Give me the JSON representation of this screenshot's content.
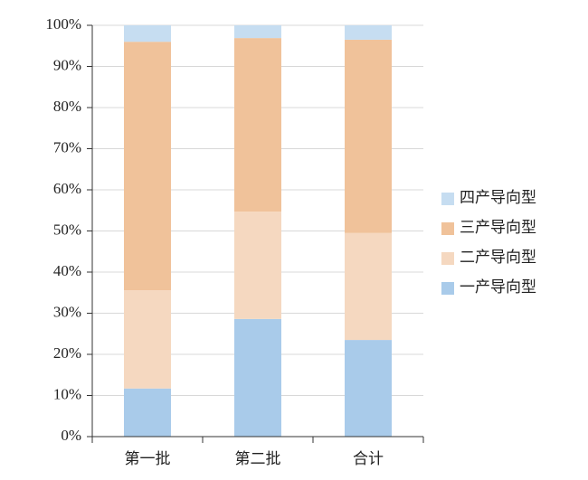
{
  "chart_data": {
    "type": "stacked_bar",
    "categories": [
      "第一批",
      "第二批",
      "合计"
    ],
    "series": [
      {
        "name": "一产导向型",
        "color": "#a9cbea",
        "values": [
          11.7,
          28.6,
          23.5
        ]
      },
      {
        "name": "二产导向型",
        "color": "#f5d8c0",
        "values": [
          23.9,
          26.1,
          26.0
        ]
      },
      {
        "name": "三产导向型",
        "color": "#f0c29a",
        "values": [
          60.4,
          42.2,
          47.0
        ]
      },
      {
        "name": "四产导向型",
        "color": "#c6ddf1",
        "values": [
          4.0,
          3.1,
          3.5
        ]
      }
    ],
    "ylim": [
      0,
      100
    ],
    "yticks": [
      {
        "value": 0,
        "label": "0%"
      },
      {
        "value": 10,
        "label": "10%"
      },
      {
        "value": 20,
        "label": "20%"
      },
      {
        "value": 30,
        "label": "30%"
      },
      {
        "value": 40,
        "label": "40%"
      },
      {
        "value": 50,
        "label": "50%"
      },
      {
        "value": 60,
        "label": "60%"
      },
      {
        "value": 70,
        "label": "70%"
      },
      {
        "value": 80,
        "label": "80%"
      },
      {
        "value": 90,
        "label": "90%"
      },
      {
        "value": 100,
        "label": "100%"
      }
    ],
    "grid": true,
    "legend": "right"
  }
}
